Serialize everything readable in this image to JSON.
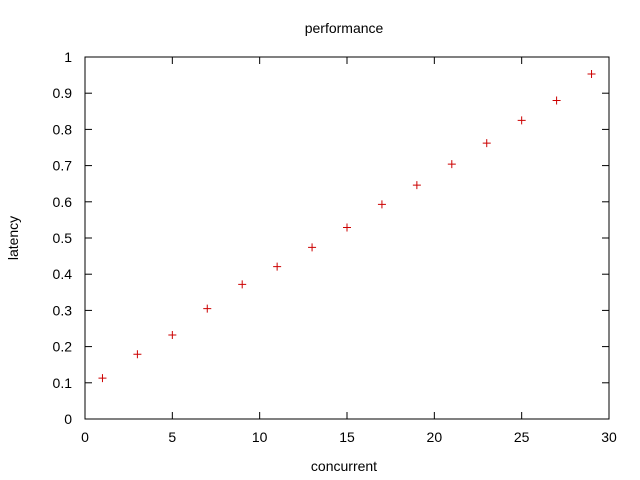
{
  "chart_data": {
    "type": "scatter",
    "title": "performance",
    "xlabel": "concurrent",
    "ylabel": "latency",
    "xlim": [
      0,
      30
    ],
    "ylim": [
      0,
      1
    ],
    "xticks": [
      0,
      5,
      10,
      15,
      20,
      25,
      30
    ],
    "yticks": [
      0,
      0.1,
      0.2,
      0.3,
      0.4,
      0.5,
      0.6,
      0.7,
      0.8,
      0.9,
      1
    ],
    "grid": false,
    "legend": "none",
    "marker": "plus",
    "color": "#cc0000",
    "series": [
      {
        "x": [
          1,
          3,
          5,
          7,
          9,
          11,
          13,
          15,
          17,
          19,
          21,
          23,
          25,
          27,
          29
        ],
        "y": [
          0.113,
          0.179,
          0.232,
          0.305,
          0.372,
          0.421,
          0.474,
          0.529,
          0.593,
          0.646,
          0.704,
          0.762,
          0.825,
          0.88,
          0.953
        ]
      }
    ]
  }
}
